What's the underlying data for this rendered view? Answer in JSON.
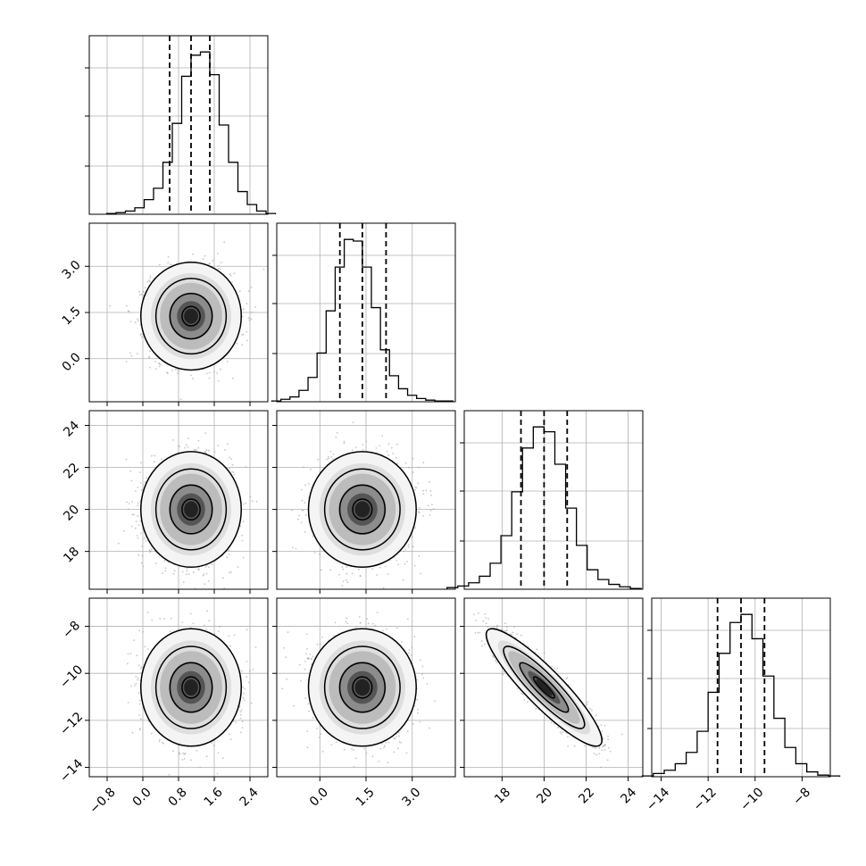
{
  "chart_data": {
    "type": "corner",
    "title": "",
    "parameters": [
      {
        "label": "",
        "range": [
          -1.2,
          2.8
        ],
        "ticks": [
          -0.8,
          0.0,
          0.8,
          1.6,
          2.4
        ],
        "tick_labels": [
          "−0.8",
          "0.0",
          "0.8",
          "1.6",
          "2.4"
        ],
        "quantiles": [
          0.6,
          1.08,
          1.5
        ],
        "histogram": [
          0.5,
          1,
          2,
          4,
          9,
          16,
          32,
          56,
          85,
          98,
          100,
          86,
          55,
          32,
          14,
          6,
          2,
          0.5
        ],
        "center": 1.08,
        "sigma": 0.45
      },
      {
        "label": "",
        "range": [
          -1.4,
          4.4
        ],
        "ticks": [
          0.0,
          1.5,
          3.0
        ],
        "tick_labels": [
          "0.0",
          "1.5",
          "3.0"
        ],
        "quantiles": [
          0.65,
          1.38,
          2.15
        ],
        "histogram": [
          0.5,
          1.5,
          3,
          7,
          15,
          30,
          56,
          83,
          100,
          99,
          83,
          58,
          32,
          16,
          8,
          4,
          2,
          1,
          0.5,
          0.5
        ],
        "center": 1.38,
        "sigma": 0.7
      },
      {
        "label": "",
        "range": [
          16.2,
          24.7
        ],
        "ticks": [
          18,
          20,
          22,
          24
        ],
        "tick_labels": [
          "18",
          "20",
          "22",
          "24"
        ],
        "quantiles": [
          18.9,
          20.0,
          21.1
        ],
        "histogram": [
          1,
          2,
          4,
          8,
          16,
          33,
          60,
          87,
          100,
          97,
          77,
          50,
          27,
          12,
          6,
          3,
          1.5,
          0.5
        ],
        "center": 20.0,
        "sigma": 1.1
      },
      {
        "label": "",
        "range": [
          -14.4,
          -6.8
        ],
        "ticks": [
          -14,
          -12,
          -10,
          -8
        ],
        "tick_labels": [
          "−14",
          "−12",
          "−10",
          "−8"
        ],
        "quantiles": [
          -11.6,
          -10.6,
          -9.6
        ],
        "histogram": [
          0.5,
          2,
          4,
          8,
          15,
          28,
          52,
          76,
          95,
          100,
          85,
          62,
          36,
          18,
          8,
          3,
          1,
          0.5
        ],
        "center": -10.6,
        "sigma": 1.0
      }
    ],
    "correlations": [
      [
        1,
        0,
        0,
        0
      ],
      [
        0,
        1,
        0.03,
        -0.08
      ],
      [
        0,
        0.03,
        1,
        -0.9
      ],
      [
        0,
        -0.08,
        -0.9,
        1
      ]
    ],
    "panels": "lower-triangle",
    "grid": true,
    "quantile_lines": "dashed",
    "contour_levels": 3,
    "colors": {
      "line": "#000000",
      "points": "#a0a0a0",
      "grid": "#b0b0b0"
    }
  }
}
